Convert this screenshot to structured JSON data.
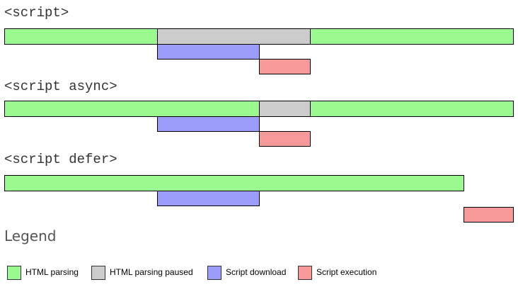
{
  "colors": {
    "html_parsing": "#9afa8f",
    "html_parsing_paused": "#cccccc",
    "script_download": "#9c9cfa",
    "script_execution": "#f99a9a"
  },
  "sections": [
    {
      "title": "<script>",
      "bars": [
        {
          "type": "html_parsing"
        },
        {
          "type": "html_parsing_paused"
        },
        {
          "type": "html_parsing"
        },
        {
          "type": "script_download"
        },
        {
          "type": "script_execution"
        }
      ]
    },
    {
      "title": "<script async>",
      "bars": [
        {
          "type": "html_parsing"
        },
        {
          "type": "html_parsing_paused"
        },
        {
          "type": "html_parsing"
        },
        {
          "type": "script_download"
        },
        {
          "type": "script_execution"
        }
      ]
    },
    {
      "title": "<script defer>",
      "bars": [
        {
          "type": "html_parsing"
        },
        {
          "type": "script_download"
        },
        {
          "type": "script_execution"
        }
      ]
    }
  ],
  "legend": {
    "title": "Legend",
    "items": [
      {
        "type": "html_parsing",
        "label": "HTML parsing"
      },
      {
        "type": "html_parsing_paused",
        "label": "HTML parsing paused"
      },
      {
        "type": "script_download",
        "label": "Script download"
      },
      {
        "type": "script_execution",
        "label": "Script execution"
      }
    ]
  }
}
